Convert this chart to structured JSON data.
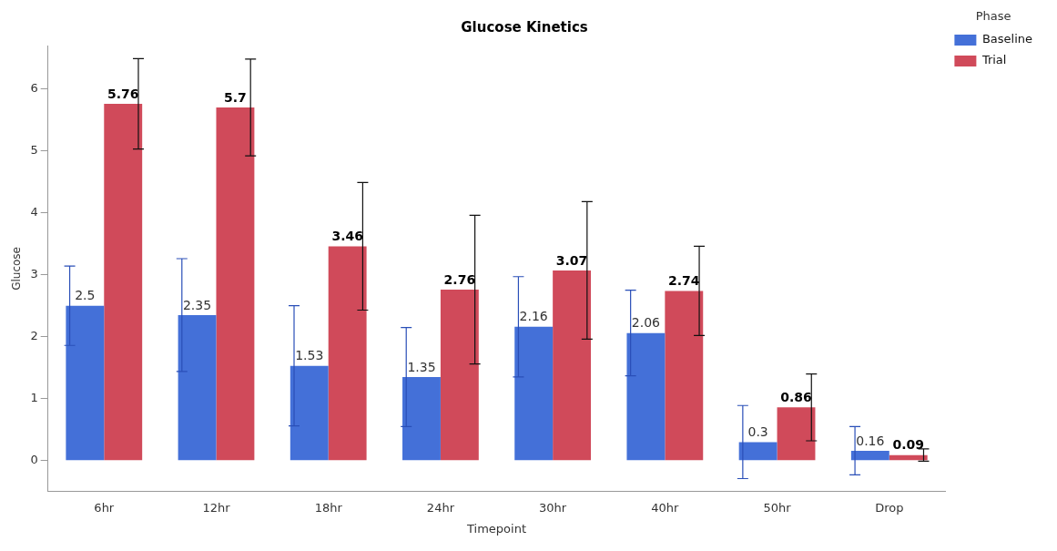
{
  "chart_data": {
    "type": "bar",
    "title": "Glucose Kinetics",
    "xlabel": "Timepoint",
    "ylabel": "Glucose",
    "legend_title": "Phase",
    "legend": "top right",
    "categories": [
      "6hr",
      "12hr",
      "18hr",
      "24hr",
      "30hr",
      "40hr",
      "50hr",
      "Drop"
    ],
    "series": [
      {
        "name": "Baseline",
        "color": "#4470d8",
        "values": [
          2.5,
          2.35,
          1.53,
          1.35,
          2.16,
          2.06,
          0.3,
          0.16
        ],
        "errors": [
          0.64,
          0.91,
          0.97,
          0.8,
          0.81,
          0.69,
          0.59,
          0.39
        ]
      },
      {
        "name": "Trial",
        "color": "#d04a5a",
        "values": [
          5.76,
          5.7,
          3.46,
          2.76,
          3.07,
          2.74,
          0.86,
          0.09
        ],
        "errors": [
          0.73,
          0.78,
          1.03,
          1.2,
          1.11,
          0.72,
          0.54,
          0.1
        ]
      }
    ],
    "data_labels": true,
    "ylim": [
      -0.5,
      6.7
    ],
    "yticks": [
      0,
      1,
      2,
      3,
      4,
      5,
      6
    ],
    "grid": false
  }
}
